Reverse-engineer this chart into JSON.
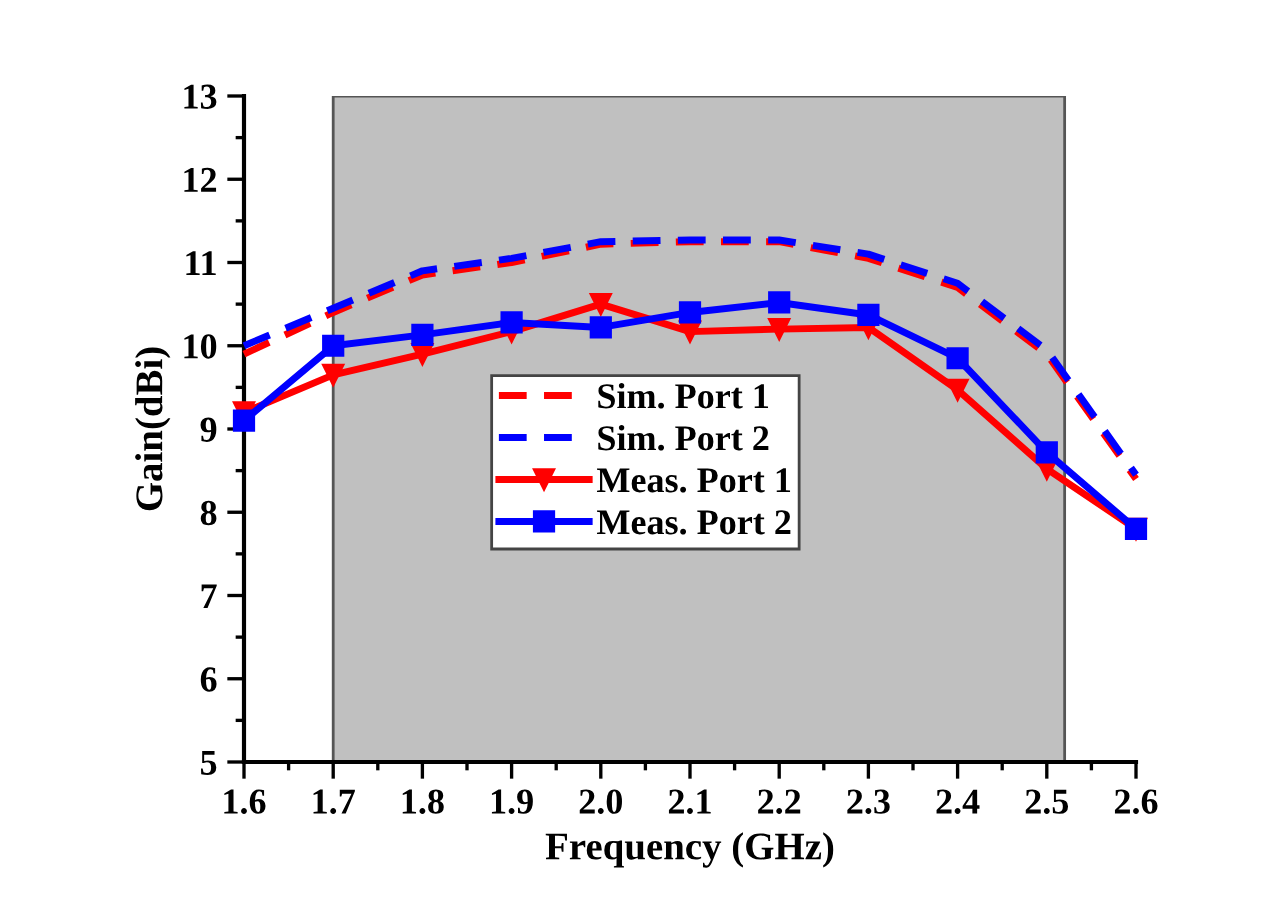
{
  "chart_data": {
    "type": "line",
    "xlabel": "Frequency (GHz)",
    "ylabel": "Gain(dBi)",
    "x": [
      1.6,
      1.7,
      1.8,
      1.9,
      2.0,
      2.1,
      2.2,
      2.3,
      2.4,
      2.5,
      2.6
    ],
    "series": [
      {
        "name": "Sim. Port 1",
        "color": "#ff0000",
        "line_style": "dashed",
        "marker": "none",
        "values": [
          9.9,
          10.4,
          10.85,
          11.0,
          11.22,
          11.25,
          11.25,
          11.05,
          10.7,
          9.9,
          8.4
        ]
      },
      {
        "name": "Sim. Port 2",
        "color": "#0000ff",
        "line_style": "dashed",
        "marker": "none",
        "values": [
          10.0,
          10.45,
          10.9,
          11.05,
          11.25,
          11.27,
          11.27,
          11.1,
          10.75,
          9.95,
          8.45
        ]
      },
      {
        "name": "Meas. Port 1",
        "color": "#ff0000",
        "line_style": "solid",
        "marker": "triangle",
        "values": [
          9.2,
          9.65,
          9.9,
          10.17,
          10.5,
          10.17,
          10.2,
          10.22,
          9.47,
          8.52,
          7.8
        ]
      },
      {
        "name": "Meas. Port 2",
        "color": "#0000ff",
        "line_style": "solid",
        "marker": "square",
        "values": [
          9.1,
          10.0,
          10.13,
          10.28,
          10.22,
          10.4,
          10.52,
          10.37,
          9.85,
          8.72,
          7.8
        ]
      }
    ],
    "bands": [
      {
        "axis": "x",
        "from": 1.7,
        "to": 2.52,
        "color": "#c0c0c0"
      }
    ],
    "xlim": [
      1.6,
      2.6
    ],
    "xticks": [
      {
        "value": 1.6,
        "label": "1.6"
      },
      {
        "value": 1.7,
        "label": "1.7"
      },
      {
        "value": 1.8,
        "label": "1.8"
      },
      {
        "value": 1.9,
        "label": "1.9"
      },
      {
        "value": 2.0,
        "label": "2.0"
      },
      {
        "value": 2.1,
        "label": "2.1"
      },
      {
        "value": 2.2,
        "label": "2.2"
      },
      {
        "value": 2.3,
        "label": "2.3"
      },
      {
        "value": 2.4,
        "label": "2.4"
      },
      {
        "value": 2.5,
        "label": "2.5"
      },
      {
        "value": 2.6,
        "label": "2.6"
      }
    ],
    "ylim": [
      5,
      13
    ],
    "yticks": [
      5,
      6,
      7,
      8,
      9,
      10,
      11,
      12,
      13
    ],
    "grid": false,
    "legend": "center"
  }
}
